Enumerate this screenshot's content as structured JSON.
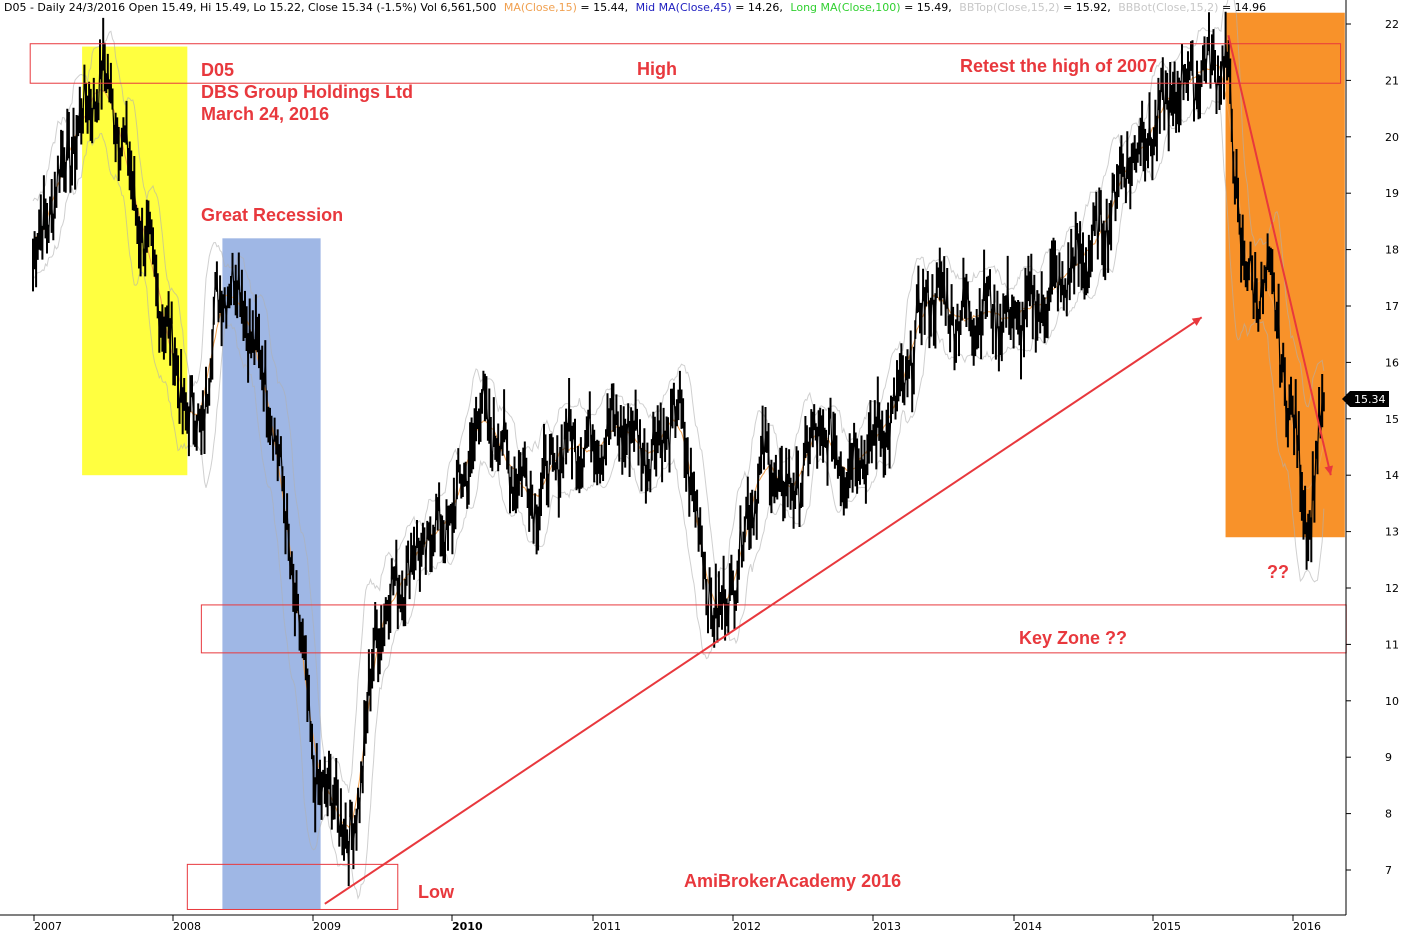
{
  "header": {
    "prefix": "D05 - Daily 24/3/2016 Open 15.49, Hi 15.49, Lo 15.22, Close 15.34 (-1.5%) Vol 6,561,500",
    "ma15_label": "MA(Close,15)",
    "ma15_value": " = 15.44,",
    "ma45_label": "Mid MA(Close,45)",
    "ma45_value": " = 14.26,",
    "ma100_label": "Long MA(Close,100)",
    "ma100_value": " = 15.49,",
    "bbtop_label": "BBTop(Close,15,2)",
    "bbtop_value": " = 15.92,",
    "bbbot_label": "BBBot(Close,15,2)",
    "bbbot_value": " = 14.96"
  },
  "colors": {
    "ma15": "#f0a050",
    "ma45": "#2020c0",
    "ma100": "#30d030",
    "bb": "#b0b0b0",
    "annotation": "#e8383d",
    "yellow_zone": "#ffff40",
    "blue_zone": "#7f9fdc",
    "orange_zone": "#f8922a"
  },
  "annotations": {
    "ticker": "D05",
    "company": "DBS Group Holdings Ltd",
    "date": "March 24, 2016",
    "great_recession": "Great Recession",
    "high": "High",
    "retest": "Retest the high of 2007",
    "key_zone": "Key Zone   ??",
    "low": "Low",
    "question": "??",
    "watermark": "AmiBrokerAcademy  2016"
  },
  "price_tag": "15.34",
  "chart_data": {
    "type": "line",
    "title": "D05 - Daily 24/3/2016",
    "xlabel": "",
    "ylabel": "",
    "x_ticks": [
      "2007",
      "2008",
      "2009",
      "2010",
      "2011",
      "2012",
      "2013",
      "2014",
      "2015",
      "2016"
    ],
    "y_ticks": [
      7,
      8,
      9,
      10,
      11,
      12,
      13,
      14,
      15,
      16,
      17,
      18,
      19,
      20,
      21,
      22
    ],
    "xlim": [
      2007.0,
      2016.3
    ],
    "ylim": [
      6.2,
      22.2
    ],
    "grid": false,
    "series": [
      {
        "name": "Close",
        "x": [
          2007.0,
          2007.1,
          2007.2,
          2007.3,
          2007.4,
          2007.5,
          2007.6,
          2007.7,
          2007.8,
          2007.9,
          2008.0,
          2008.1,
          2008.2,
          2008.3,
          2008.4,
          2008.5,
          2008.6,
          2008.7,
          2008.8,
          2008.9,
          2009.0,
          2009.08,
          2009.15,
          2009.25,
          2009.35,
          2009.45,
          2009.6,
          2009.8,
          2010.0,
          2010.2,
          2010.4,
          2010.6,
          2010.8,
          2011.0,
          2011.2,
          2011.4,
          2011.6,
          2011.7,
          2011.8,
          2011.9,
          2012.0,
          2012.2,
          2012.4,
          2012.6,
          2012.8,
          2013.0,
          2013.2,
          2013.3,
          2013.4,
          2013.6,
          2013.8,
          2014.0,
          2014.2,
          2014.4,
          2014.6,
          2014.8,
          2015.0,
          2015.2,
          2015.35,
          2015.5,
          2015.6,
          2015.7,
          2015.8,
          2015.9,
          2016.0,
          2016.1,
          2016.2
        ],
        "values": [
          17.8,
          18.6,
          19.4,
          20.0,
          20.6,
          21.1,
          20.4,
          19.2,
          18.1,
          17.2,
          16.1,
          15.1,
          14.8,
          16.9,
          17.6,
          17.1,
          16.1,
          15.3,
          13.2,
          11.2,
          8.9,
          8.1,
          8.5,
          7.3,
          8.9,
          11.3,
          12.1,
          12.8,
          13.3,
          15.2,
          14.2,
          13.6,
          14.6,
          14.6,
          14.9,
          14.4,
          15.1,
          13.9,
          12.1,
          11.4,
          12.3,
          14.3,
          13.6,
          14.8,
          14.2,
          14.6,
          15.4,
          16.6,
          17.3,
          16.8,
          17.0,
          16.7,
          17.1,
          17.6,
          18.2,
          19.6,
          20.2,
          21.0,
          21.2,
          21.4,
          18.4,
          17.1,
          17.6,
          16.1,
          14.6,
          13.1,
          15.3
        ]
      }
    ],
    "zones": [
      {
        "name": "yellow",
        "x": [
          2007.35,
          2008.1
        ],
        "y": [
          14.0,
          21.6
        ]
      },
      {
        "name": "blue",
        "x": [
          2008.35,
          2009.05
        ],
        "y": [
          6.3,
          18.2
        ]
      },
      {
        "name": "orange",
        "x": [
          2015.5,
          2016.35
        ],
        "y": [
          12.9,
          22.2
        ]
      }
    ],
    "boxes": [
      {
        "name": "high",
        "x": [
          2006.98,
          2016.32
        ],
        "y": [
          20.95,
          21.65
        ]
      },
      {
        "name": "key_zone",
        "x": [
          2008.2,
          2016.36
        ],
        "y": [
          10.85,
          11.7
        ]
      },
      {
        "name": "low",
        "x": [
          2008.1,
          2009.6
        ],
        "y": [
          6.3,
          7.1
        ]
      }
    ],
    "trend_lines": [
      {
        "name": "uptrend",
        "from": [
          2009.08,
          6.4
        ],
        "to": [
          2015.33,
          16.8
        ]
      },
      {
        "name": "downtrend",
        "from": [
          2015.52,
          21.8
        ],
        "to": [
          2016.25,
          14.0
        ]
      }
    ]
  }
}
